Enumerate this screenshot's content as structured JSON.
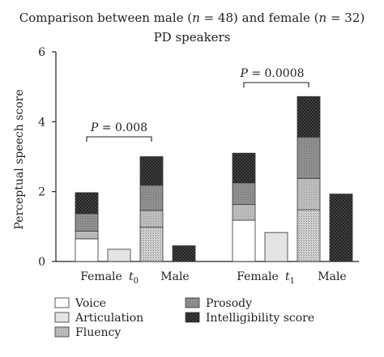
{
  "chart_data": {
    "type": "bar",
    "title_line1_parts": [
      "Comparison between male (",
      "n",
      " = 48) and female (",
      "n",
      " = 32)"
    ],
    "title_line2": "PD speakers",
    "ylabel": "Perceptual speech score",
    "ylim": [
      0,
      6
    ],
    "yticks": [
      "0",
      "2",
      "4",
      "6"
    ],
    "grid": false,
    "legend_position": "bottom",
    "groups": [
      {
        "label_parts": [
          "t",
          "0"
        ],
        "bars": [
          {
            "label": "Female",
            "stack": {
              "Voice": 0.65,
              "Articulation": 0.0,
              "Fluency": 0.22,
              "Prosody": 0.5,
              "Intelligibility score": 0.6
            }
          },
          {
            "label": "",
            "stack": {
              "Articulation": 0.35
            }
          },
          {
            "label": "Male",
            "stack": {
              "Voice": 0.98,
              "Fluency": 0.48,
              "Prosody": 0.72,
              "Intelligibility score": 0.82
            }
          },
          {
            "label": "",
            "stack": {
              "Intelligibility score": 0.45
            }
          }
        ],
        "p_value": "P = 0.008"
      },
      {
        "label_parts": [
          "t",
          "1"
        ],
        "bars": [
          {
            "label": "Female",
            "stack": {
              "Voice": 1.18,
              "Fluency": 0.45,
              "Prosody": 0.62,
              "Intelligibility score": 0.85
            }
          },
          {
            "label": "",
            "stack": {
              "Articulation": 0.83
            }
          },
          {
            "label": "Male",
            "stack": {
              "Voice": 1.48,
              "Fluency": 0.9,
              "Prosody": 1.18,
              "Intelligibility score": 1.16
            }
          },
          {
            "label": "",
            "stack": {
              "Intelligibility score": 1.93
            }
          }
        ],
        "p_value": "P = 0.0008"
      }
    ],
    "legend": [
      {
        "name": "Voice",
        "color": "#ffffff"
      },
      {
        "name": "Articulation",
        "color": "#e4e4e4"
      },
      {
        "name": "Fluency",
        "color": "#b2b2b2"
      },
      {
        "name": "Prosody",
        "color": "#8a8a8a"
      },
      {
        "name": "Intelligibility score",
        "color": "#3c3c3c"
      }
    ]
  }
}
